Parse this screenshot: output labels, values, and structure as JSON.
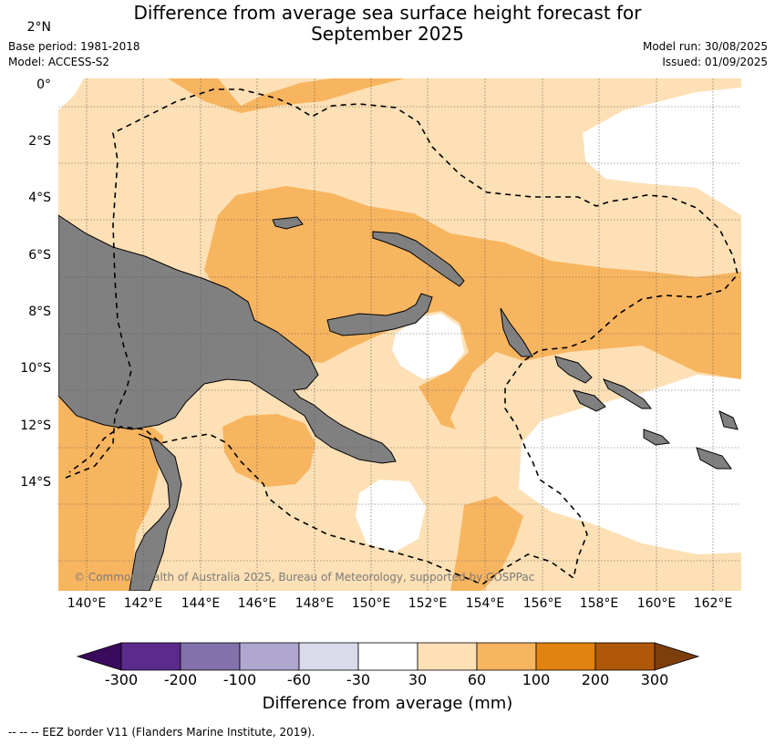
{
  "title_line1": "Difference from average sea surface height forecast for",
  "title_line2": "September 2025",
  "base_period": "Base period: 1981-2018",
  "model": "Model: ACCESS-S2",
  "model_run": "Model run: 30/08/2025",
  "issued": "Issued: 01/09/2025",
  "copyright": "© Commonwealth of Australia 2025, Bureau of Meteorology, supported by COSPPac",
  "lat_labels": [
    "2°N",
    "0°",
    "2°S",
    "4°S",
    "6°S",
    "8°S",
    "10°S",
    "12°S",
    "14°S"
  ],
  "lon_labels": [
    "140°E",
    "142°E",
    "144°E",
    "146°E",
    "148°E",
    "150°E",
    "152°E",
    "154°E",
    "156°E",
    "158°E",
    "160°E",
    "162°E"
  ],
  "colorbar": {
    "title": "Difference from average (mm)",
    "ticks": [
      "-300",
      "-200",
      "-100",
      "-60",
      "-30",
      "30",
      "60",
      "100",
      "200",
      "300"
    ],
    "colors": [
      "#3a0a5c",
      "#5b2a8c",
      "#8271ad",
      "#b0a7d0",
      "#d9dbeb",
      "#ffffff",
      "#fde0b5",
      "#f8b560",
      "#e28210",
      "#b0580a",
      "#7b3e0c"
    ]
  },
  "colors": {
    "land": "#808080",
    "band_30_60": "#fde0b5",
    "band_60_100": "#f8b560",
    "band_neutral": "#ffffff"
  },
  "footnote": "--  --  -- EEZ border V11 (Flanders Marine Institute, 2019)."
}
